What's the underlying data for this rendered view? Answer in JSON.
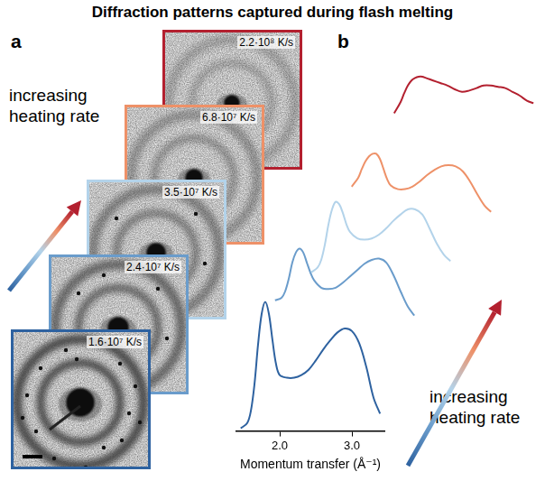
{
  "title": "Diffraction patterns captured during flash melting",
  "panel_a": {
    "letter": "a",
    "annotation": "increasing heating rate",
    "images": [
      {
        "label": "1.6·10⁷ K/s",
        "color": "#2e62a0"
      },
      {
        "label": "2.4·10⁷ K/s",
        "color": "#6a9ccb"
      },
      {
        "label": "3.5·10⁷ K/s",
        "color": "#b3d3ea"
      },
      {
        "label": "6.8·10⁷ K/s",
        "color": "#ee9168"
      },
      {
        "label": "2.2·10⁸ K/s",
        "color": "#b3202f"
      }
    ]
  },
  "chart_data": {
    "type": "line",
    "letter": "b",
    "annotations": [
      "increasing heating rate"
    ],
    "x_label": "Momentum transfer (Å⁻¹)",
    "x": [
      1.46,
      1.55,
      1.6,
      1.65,
      1.7,
      1.75,
      1.8,
      1.85,
      1.9,
      1.95,
      2.0,
      2.1,
      2.2,
      2.3,
      2.4,
      2.5,
      2.6,
      2.7,
      2.8,
      2.9,
      3.0,
      3.1,
      3.2,
      3.3,
      3.39
    ],
    "xlim": [
      1.4,
      3.45
    ],
    "xticks": [
      {
        "value": 2,
        "label": "2.0"
      },
      {
        "value": 3,
        "label": "3.0"
      }
    ],
    "ylim": [
      0,
      1
    ],
    "tick_labels": "x",
    "grid": false,
    "series": [
      {
        "color": "#2e62a0",
        "values": [
          0.02,
          0.06,
          0.15,
          0.35,
          0.65,
          0.88,
          0.97,
          0.88,
          0.68,
          0.5,
          0.42,
          0.4,
          0.4,
          0.42,
          0.46,
          0.53,
          0.61,
          0.68,
          0.74,
          0.77,
          0.75,
          0.66,
          0.48,
          0.25,
          0.13
        ]
      },
      {
        "color": "#6a9ccb",
        "values": [
          0.48,
          0.5,
          0.55,
          0.65,
          0.78,
          0.86,
          0.89,
          0.86,
          0.78,
          0.7,
          0.64,
          0.58,
          0.57,
          0.58,
          0.62,
          0.67,
          0.72,
          0.77,
          0.8,
          0.81,
          0.78,
          0.68,
          0.55,
          0.43,
          0.36
        ]
      },
      {
        "color": "#b3d3ea",
        "values": [
          0.2,
          0.24,
          0.3,
          0.42,
          0.58,
          0.7,
          0.76,
          0.74,
          0.67,
          0.58,
          0.52,
          0.47,
          0.46,
          0.47,
          0.5,
          0.55,
          0.61,
          0.66,
          0.7,
          0.7,
          0.66,
          0.55,
          0.43,
          0.34,
          0.29
        ]
      },
      {
        "color": "#ee9168",
        "values": [
          0.38,
          0.45,
          0.52,
          0.58,
          0.62,
          0.64,
          0.64,
          0.6,
          0.52,
          0.44,
          0.39,
          0.36,
          0.36,
          0.38,
          0.42,
          0.47,
          0.51,
          0.54,
          0.55,
          0.54,
          0.5,
          0.42,
          0.32,
          0.23,
          0.18
        ]
      },
      {
        "color": "#b3202f",
        "values": [
          0.46,
          0.55,
          0.62,
          0.68,
          0.72,
          0.74,
          0.75,
          0.75,
          0.74,
          0.73,
          0.72,
          0.7,
          0.68,
          0.65,
          0.63,
          0.64,
          0.66,
          0.68,
          0.68,
          0.67,
          0.66,
          0.63,
          0.6,
          0.56,
          0.54
        ]
      }
    ]
  }
}
